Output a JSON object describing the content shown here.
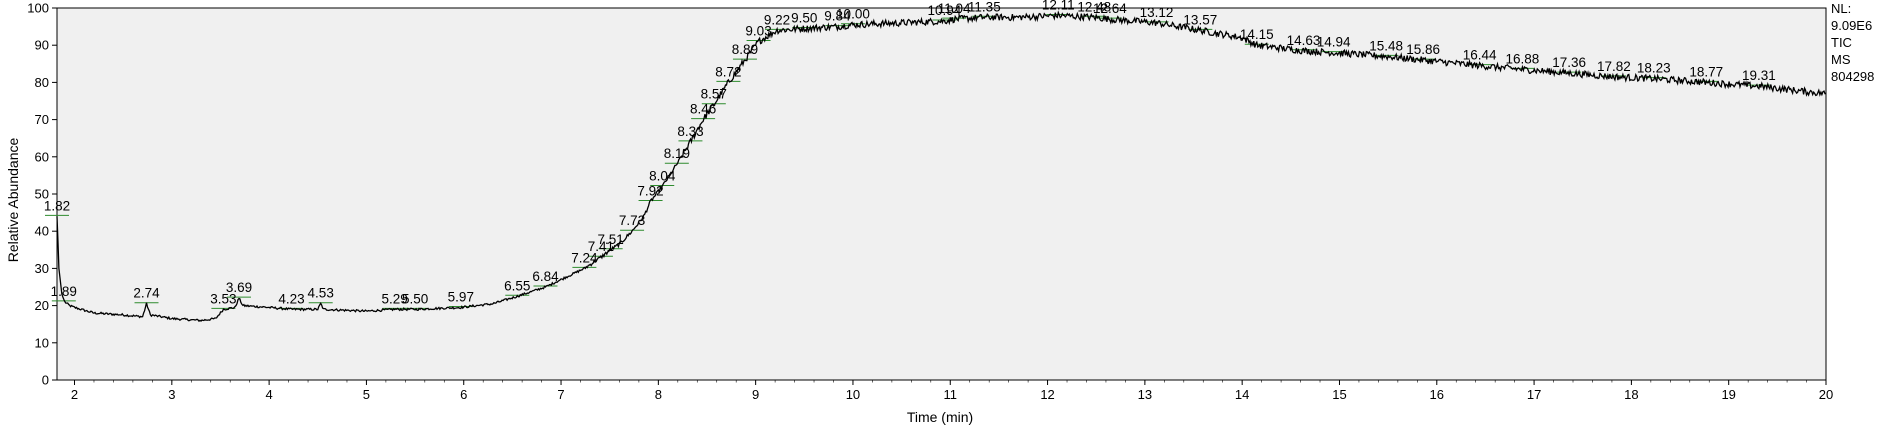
{
  "info": {
    "nl_label": "NL:",
    "nl_value": "9.09E6",
    "scan_label": "TIC  MS",
    "file_id": "804298"
  },
  "chart_data": {
    "type": "line",
    "title": "",
    "xlabel": "Time (min)",
    "ylabel": "Relative Abundance",
    "xlim": [
      1.82,
      20
    ],
    "ylim": [
      0,
      100
    ],
    "x_ticks": [
      2,
      3,
      4,
      5,
      6,
      7,
      8,
      9,
      10,
      11,
      12,
      13,
      14,
      15,
      16,
      17,
      18,
      19,
      20
    ],
    "x_tick_labels": [
      "2",
      "3",
      "4",
      "5",
      "6",
      "7",
      "8",
      "9",
      "10",
      "11",
      "12",
      "13",
      "14",
      "15",
      "16",
      "17",
      "18",
      "19",
      "20"
    ],
    "y_ticks": [
      0,
      10,
      20,
      30,
      40,
      50,
      60,
      70,
      80,
      90,
      100
    ],
    "y_tick_labels": [
      "0",
      "10",
      "20",
      "30",
      "40",
      "50",
      "60",
      "70",
      "80",
      "90",
      "100"
    ],
    "grid": false,
    "series": [
      {
        "color": "#000000",
        "x": [
          1.82,
          1.84,
          1.87,
          1.9,
          1.95,
          2.0,
          2.2,
          2.5,
          2.7,
          2.74,
          2.78,
          3.0,
          3.3,
          3.45,
          3.53,
          3.65,
          3.69,
          3.73,
          4.0,
          4.23,
          4.5,
          4.53,
          4.56,
          5.0,
          5.29,
          5.5,
          5.97,
          6.3,
          6.55,
          6.84,
          7.0,
          7.24,
          7.41,
          7.51,
          7.6,
          7.73,
          7.85,
          7.92,
          8.04,
          8.19,
          8.33,
          8.46,
          8.57,
          8.72,
          8.89,
          9.03,
          9.22,
          9.5,
          9.84,
          10.0,
          10.5,
          10.94,
          11.04,
          11.35,
          11.7,
          12.11,
          12.48,
          12.64,
          13.12,
          13.57,
          14.0,
          14.15,
          14.63,
          14.94,
          15.48,
          15.86,
          16.44,
          16.88,
          17.36,
          17.82,
          18.23,
          18.77,
          19.31,
          19.8,
          20.0
        ],
        "y": [
          44,
          30,
          23,
          21,
          20,
          19.5,
          18,
          17.5,
          17,
          20.5,
          17.5,
          16.5,
          16,
          16.5,
          19,
          19.5,
          22,
          20,
          19.5,
          19,
          19,
          20.5,
          19,
          18.5,
          19,
          19,
          19.5,
          20.5,
          22.5,
          25,
          27,
          30,
          33,
          35,
          36.5,
          40,
          44,
          48,
          52,
          58,
          64,
          70,
          74,
          80,
          86,
          91,
          94,
          94.5,
          95,
          95.5,
          96,
          96.5,
          97,
          97.5,
          97.5,
          98,
          97.5,
          97,
          96,
          94,
          92,
          90,
          88.5,
          88,
          87,
          86,
          84.5,
          83.5,
          82.5,
          81.5,
          81,
          80,
          79,
          77.5,
          77
        ]
      }
    ],
    "annotations": [
      {
        "text": "1.82",
        "x": 1.82,
        "y": 44
      },
      {
        "text": "1.89",
        "x": 1.89,
        "y": 21
      },
      {
        "text": "2.74",
        "x": 2.74,
        "y": 20.5
      },
      {
        "text": "3.53",
        "x": 3.53,
        "y": 19
      },
      {
        "text": "3.69",
        "x": 3.69,
        "y": 22
      },
      {
        "text": "4.23",
        "x": 4.23,
        "y": 19
      },
      {
        "text": "4.53",
        "x": 4.53,
        "y": 20.5
      },
      {
        "text": "5.29",
        "x": 5.29,
        "y": 19
      },
      {
        "text": "5.50",
        "x": 5.5,
        "y": 19
      },
      {
        "text": "5.97",
        "x": 5.97,
        "y": 19.5
      },
      {
        "text": "6.55",
        "x": 6.55,
        "y": 22.5
      },
      {
        "text": "6.84",
        "x": 6.84,
        "y": 25
      },
      {
        "text": "7.24",
        "x": 7.24,
        "y": 30
      },
      {
        "text": "7.41",
        "x": 7.41,
        "y": 33
      },
      {
        "text": "7.51",
        "x": 7.51,
        "y": 35
      },
      {
        "text": "7.73",
        "x": 7.73,
        "y": 40
      },
      {
        "text": "7.92",
        "x": 7.92,
        "y": 48
      },
      {
        "text": "8.04",
        "x": 8.04,
        "y": 52
      },
      {
        "text": "8.19",
        "x": 8.19,
        "y": 58
      },
      {
        "text": "8.33",
        "x": 8.33,
        "y": 64
      },
      {
        "text": "8.46",
        "x": 8.46,
        "y": 70
      },
      {
        "text": "8.57",
        "x": 8.57,
        "y": 74
      },
      {
        "text": "8.72",
        "x": 8.72,
        "y": 80
      },
      {
        "text": "8.89",
        "x": 8.89,
        "y": 86
      },
      {
        "text": "9.03",
        "x": 9.03,
        "y": 91
      },
      {
        "text": "9.22",
        "x": 9.22,
        "y": 94
      },
      {
        "text": "9.50",
        "x": 9.5,
        "y": 94.5
      },
      {
        "text": "9.84",
        "x": 9.84,
        "y": 95
      },
      {
        "text": "10.00",
        "x": 10.0,
        "y": 95.5
      },
      {
        "text": "10.94",
        "x": 10.94,
        "y": 96.5
      },
      {
        "text": "11.04",
        "x": 11.04,
        "y": 97
      },
      {
        "text": "11.35",
        "x": 11.35,
        "y": 97.5
      },
      {
        "text": "12.11",
        "x": 12.11,
        "y": 98
      },
      {
        "text": "12.48",
        "x": 12.48,
        "y": 97.5
      },
      {
        "text": "12.64",
        "x": 12.64,
        "y": 97
      },
      {
        "text": "13.12",
        "x": 13.12,
        "y": 96
      },
      {
        "text": "13.57",
        "x": 13.57,
        "y": 94
      },
      {
        "text": "14.15",
        "x": 14.15,
        "y": 90
      },
      {
        "text": "14.63",
        "x": 14.63,
        "y": 88.5
      },
      {
        "text": "14.94",
        "x": 14.94,
        "y": 88
      },
      {
        "text": "15.48",
        "x": 15.48,
        "y": 87
      },
      {
        "text": "15.86",
        "x": 15.86,
        "y": 86
      },
      {
        "text": "16.44",
        "x": 16.44,
        "y": 84.5
      },
      {
        "text": "16.88",
        "x": 16.88,
        "y": 83.5
      },
      {
        "text": "17.36",
        "x": 17.36,
        "y": 82.5
      },
      {
        "text": "17.82",
        "x": 17.82,
        "y": 81.5
      },
      {
        "text": "18.23",
        "x": 18.23,
        "y": 81
      },
      {
        "text": "18.77",
        "x": 18.77,
        "y": 80
      },
      {
        "text": "19.31",
        "x": 19.31,
        "y": 79
      }
    ],
    "colors": {
      "trace": "#000000",
      "peak_marker": "#2e8b2e",
      "plot_background": "#f0f0f0"
    }
  }
}
